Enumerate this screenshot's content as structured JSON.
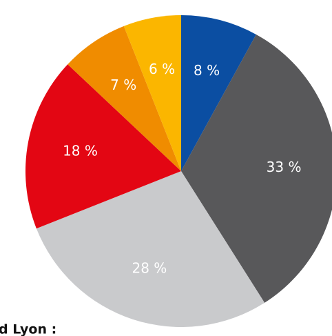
{
  "chart_data": {
    "type": "pie",
    "values": [
      8,
      33,
      28,
      18,
      7,
      6
    ],
    "value_labels": [
      "8 %",
      "33 %",
      "28 %",
      "18 %",
      "7 %",
      "6 %"
    ],
    "colors": [
      "#0b4ea2",
      "#58585a",
      "#c9cacc",
      "#e30613",
      "#f08c00",
      "#fbb600"
    ],
    "footer": "d Lyon :"
  }
}
